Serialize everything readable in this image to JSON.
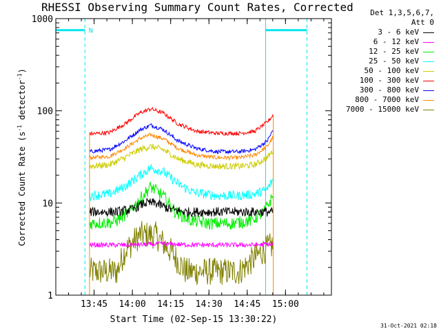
{
  "header": {
    "title": "RHESSI Observing Summary Count Rates, Corrected",
    "timestamp": "31-Oct-2021 02:18"
  },
  "legend": {
    "header_lines": [
      "Det 1,3,5,6,7,",
      "Att 0"
    ],
    "items": [
      {
        "label": "3 - 6 keV",
        "color": "#000000"
      },
      {
        "label": "6 - 12 keV",
        "color": "#ff00ff"
      },
      {
        "label": "12 - 25 keV",
        "color": "#00ee00"
      },
      {
        "label": "25 - 50 keV",
        "color": "#00ffff"
      },
      {
        "label": "50 - 100 keV",
        "color": "#cccc00"
      },
      {
        "label": "100 - 300 keV",
        "color": "#ff0000"
      },
      {
        "label": "300 - 800 keV",
        "color": "#0000ff"
      },
      {
        "label": "800 - 7000 keV",
        "color": "#ff8800"
      },
      {
        "label": "7000 - 15000 keV",
        "color": "#808000"
      }
    ]
  },
  "chart_data": {
    "type": "line",
    "title": "RHESSI Observing Summary Count Rates, Corrected",
    "xlabel": "Start Time (02-Sep-15 13:30:22)",
    "ylabel_main": "Corrected Count Rate (s",
    "ylabel_sup1": "-1",
    "ylabel_mid": " detector",
    "ylabel_sup2": "-1",
    "ylabel_end": ")",
    "yscale": "log",
    "ylim": [
      1,
      1000
    ],
    "xlim": [
      13.5,
      15.3
    ],
    "x_ticks": [
      {
        "value": 13.75,
        "label": "13:45"
      },
      {
        "value": 14.0,
        "label": "14:00"
      },
      {
        "value": 14.25,
        "label": "14:15"
      },
      {
        "value": 14.5,
        "label": "14:30"
      },
      {
        "value": 14.75,
        "label": "14:45"
      },
      {
        "value": 15.0,
        "label": "15:00"
      }
    ],
    "y_ticks": [
      {
        "value": 1,
        "label": "1"
      },
      {
        "value": 10,
        "label": "10"
      },
      {
        "value": 100,
        "label": "100"
      },
      {
        "value": 1000,
        "label": "1000"
      }
    ],
    "data_start": 13.72,
    "data_end": 14.92,
    "night_markers": {
      "color": "#00e5ee",
      "solid_x": [
        13.5,
        14.87
      ],
      "dashed_x": [
        13.69,
        15.14
      ],
      "bar1": [
        13.5,
        13.69
      ],
      "bar2": [
        14.87,
        15.14
      ],
      "bar_y": 750,
      "label": "N",
      "label_x": 13.715
    },
    "series": [
      {
        "name": "3 - 6 keV",
        "color": "#000000",
        "x": [
          13.72,
          13.9,
          14.0,
          14.08,
          14.15,
          14.25,
          14.35,
          14.5,
          14.65,
          14.8,
          14.92
        ],
        "values": [
          8,
          8,
          8.5,
          10,
          10,
          8.5,
          8,
          8,
          8,
          8,
          8
        ]
      },
      {
        "name": "6 - 12 keV",
        "color": "#ff00ff",
        "x": [
          13.72,
          14.0,
          14.2,
          14.4,
          14.6,
          14.8,
          14.92
        ],
        "values": [
          3.5,
          3.5,
          3.6,
          3.5,
          3.5,
          3.5,
          3.6
        ]
      },
      {
        "name": "12 - 25 keV",
        "color": "#00ee00",
        "x": [
          13.72,
          13.88,
          13.98,
          14.05,
          14.12,
          14.2,
          14.28,
          14.38,
          14.5,
          14.65,
          14.78,
          14.86,
          14.92
        ],
        "values": [
          6,
          6.2,
          8,
          11,
          15,
          12,
          8,
          6.5,
          6,
          6,
          6.5,
          8,
          12
        ]
      },
      {
        "name": "25 - 50 keV",
        "color": "#00ffff",
        "x": [
          13.72,
          13.85,
          13.95,
          14.05,
          14.12,
          14.2,
          14.3,
          14.4,
          14.55,
          14.7,
          14.8,
          14.88,
          14.92
        ],
        "values": [
          12,
          12.5,
          15,
          20,
          24,
          22,
          16,
          13,
          12,
          12,
          12.5,
          14,
          18
        ]
      },
      {
        "name": "50 - 100 keV",
        "color": "#cccc00",
        "x": [
          13.72,
          13.85,
          13.95,
          14.05,
          14.12,
          14.2,
          14.3,
          14.42,
          14.55,
          14.7,
          14.8,
          14.88,
          14.92
        ],
        "values": [
          25,
          26,
          31,
          38,
          41,
          38,
          30,
          26,
          25,
          25,
          26,
          31,
          37
        ]
      },
      {
        "name": "100 - 300 keV",
        "color": "#ff0000",
        "x": [
          13.72,
          13.85,
          13.95,
          14.05,
          14.12,
          14.2,
          14.3,
          14.42,
          14.55,
          14.7,
          14.8,
          14.88,
          14.92
        ],
        "values": [
          56,
          58,
          72,
          95,
          105,
          95,
          72,
          60,
          57,
          57,
          60,
          75,
          90
        ]
      },
      {
        "name": "300 - 800 keV",
        "color": "#0000ff",
        "x": [
          13.72,
          13.85,
          13.95,
          14.05,
          14.12,
          14.2,
          14.3,
          14.42,
          14.55,
          14.7,
          14.8,
          14.88,
          14.92
        ],
        "values": [
          36,
          38,
          47,
          62,
          70,
          63,
          47,
          39,
          36,
          36,
          38,
          47,
          62
        ]
      },
      {
        "name": "800 - 7000 keV",
        "color": "#ff8800",
        "x": [
          13.72,
          13.85,
          13.95,
          14.05,
          14.12,
          14.2,
          14.3,
          14.42,
          14.55,
          14.7,
          14.8,
          14.88,
          14.92
        ],
        "values": [
          31,
          32,
          39,
          50,
          55,
          50,
          39,
          33,
          31,
          31,
          33,
          41,
          52
        ]
      },
      {
        "name": "7000 - 15000 keV",
        "color": "#808000",
        "x": [
          13.72,
          13.9,
          13.95,
          14.05,
          14.15,
          14.25,
          14.35,
          14.5,
          14.7,
          14.85,
          14.92
        ],
        "values": [
          1.8,
          1.8,
          3,
          4.5,
          4.5,
          3,
          1.8,
          1.8,
          1.8,
          3,
          3.5
        ]
      }
    ]
  }
}
